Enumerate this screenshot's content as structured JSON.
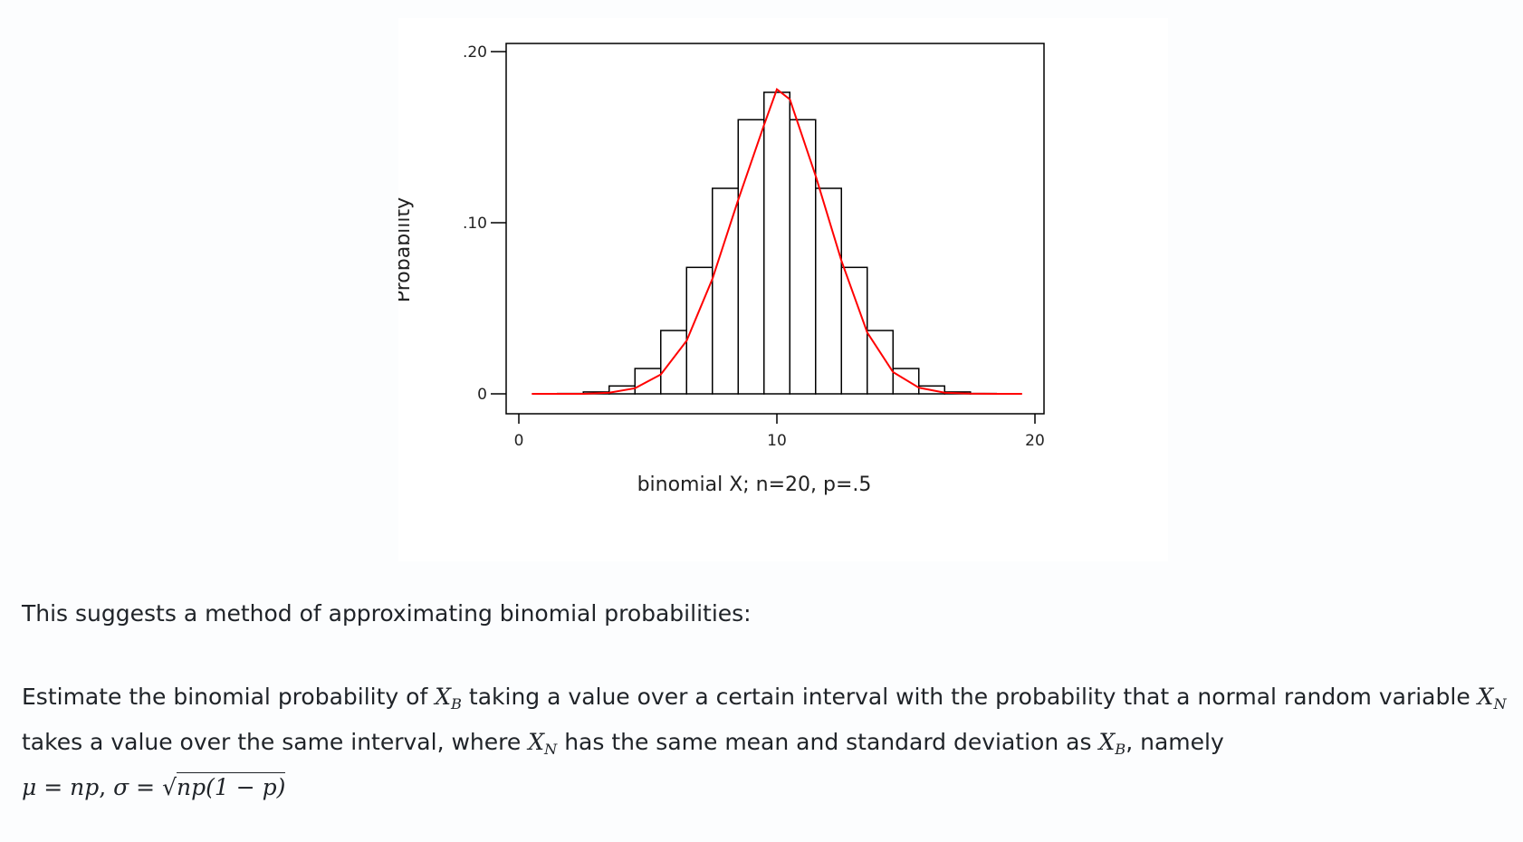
{
  "chart_data": {
    "type": "bar",
    "xlabel": "binomial X; n=20, p=.5",
    "ylabel": "Probability",
    "xlim": [
      0,
      20
    ],
    "ylim": [
      0,
      0.2
    ],
    "x_ticks": [
      "0",
      "10",
      "20"
    ],
    "y_ticks": [
      ".20",
      ".10",
      "0"
    ],
    "grid": false,
    "categories": [
      0,
      1,
      2,
      3,
      4,
      5,
      6,
      7,
      8,
      9,
      10,
      11,
      12,
      13,
      14,
      15,
      16,
      17,
      18,
      19,
      20
    ],
    "values": [
      1e-06,
      1.9e-05,
      0.0002,
      0.0011,
      0.0046,
      0.0148,
      0.037,
      0.0739,
      0.1201,
      0.1602,
      0.1762,
      0.1602,
      0.1201,
      0.0739,
      0.037,
      0.0148,
      0.0046,
      0.0011,
      0.0002,
      1.9e-05,
      1e-06
    ],
    "bar_color": "#ffffff",
    "bar_edge_color": "#000000",
    "overlay_line": {
      "color": "#ff0000",
      "x": [
        0.5,
        1.5,
        2.5,
        3.5,
        4.5,
        5.5,
        6.5,
        7.5,
        8.5,
        9.5,
        10.0,
        10.5,
        11.5,
        12.5,
        13.5,
        14.5,
        15.5,
        16.5,
        17.5,
        18.5,
        19.5
      ],
      "y": [
        0.0,
        0.0,
        0.0,
        0.0007,
        0.0033,
        0.0113,
        0.031,
        0.0672,
        0.1134,
        0.1571,
        0.178,
        0.1721,
        0.1274,
        0.0777,
        0.0358,
        0.0127,
        0.0036,
        0.0007,
        0.0001,
        0.0,
        0.0
      ]
    }
  },
  "text": {
    "intro": "This suggests a method of approximating binomial probabilities:",
    "estimate_1": "Estimate the binomial probability of",
    "estimate_2": "taking a value over a certain interval with the probability that a normal random variable",
    "estimate_3": "takes a value over the same interval, where",
    "estimate_4": "has the same mean and standard deviation as",
    "estimate_5": ", namely"
  },
  "math": {
    "X": "X",
    "sub_B": "B",
    "sub_N": "N",
    "mu": "μ",
    "eq": "=",
    "np": "np",
    "comma": ",",
    "sigma": "σ",
    "sqrt_sign": "√",
    "sqrt_body": "np(1 − p)"
  }
}
